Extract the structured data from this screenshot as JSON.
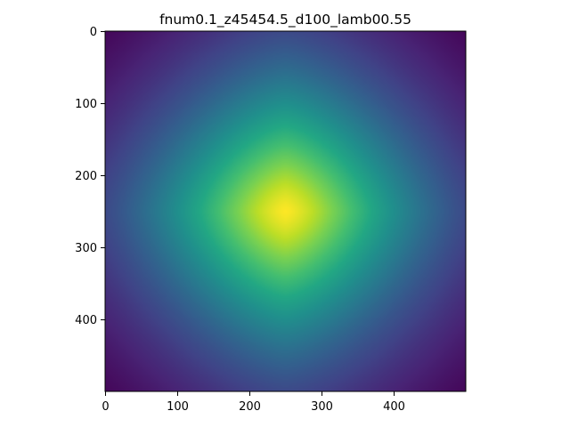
{
  "chart_data": {
    "type": "heatmap",
    "title": "fnum0.1_z45454.5_d100_lamb00.55",
    "colormap": "viridis",
    "xlim": [
      0,
      500
    ],
    "ylim": [
      500,
      0
    ],
    "y_axis_inverted": true,
    "x_ticks": [
      {
        "value": 0,
        "label": "0"
      },
      {
        "value": 100,
        "label": "100"
      },
      {
        "value": 200,
        "label": "200"
      },
      {
        "value": 300,
        "label": "300"
      },
      {
        "value": 400,
        "label": "400"
      }
    ],
    "y_ticks": [
      {
        "value": 0,
        "label": "0"
      },
      {
        "value": 100,
        "label": "100"
      },
      {
        "value": 200,
        "label": "200"
      },
      {
        "value": 300,
        "label": "300"
      },
      {
        "value": 400,
        "label": "400"
      }
    ],
    "peak_center": {
      "x": 250,
      "y": 250
    },
    "grid": false,
    "colorbar": false
  }
}
